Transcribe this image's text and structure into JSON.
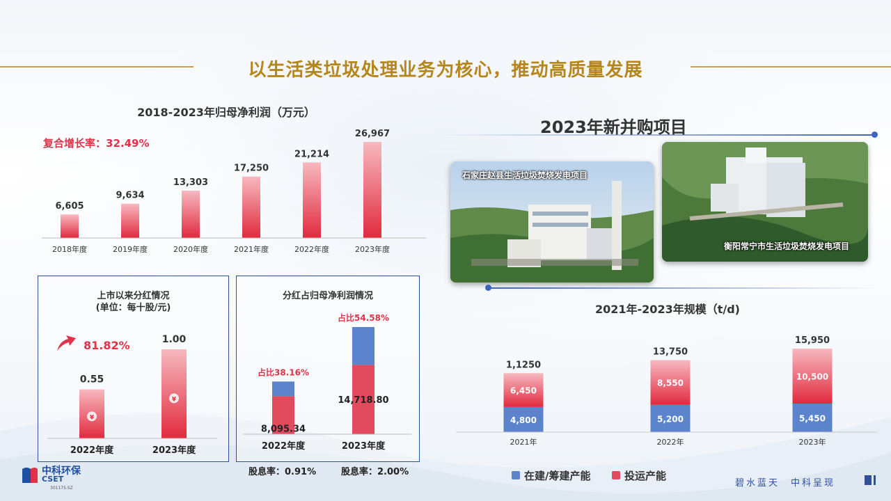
{
  "page": {
    "title": "以生活类垃圾处理业务为核心，推动高质量发展",
    "brand_cn": "中科环保",
    "brand_en": "CSET",
    "stock_code": "301175.SZ",
    "slogan": "碧水蓝天　中科呈现"
  },
  "acquisitions": {
    "title": "2023年新并购项目",
    "project_1": "石家庄赵县生活垃圾焚烧发电项目",
    "project_2": "衡阳常宁市生活垃圾焚烧发电项目"
  },
  "profit_chart": {
    "title": "2018-2023年归母净利润（万元）",
    "cagr_label": "复合增长率：32.49%"
  },
  "dividend_chart": {
    "title_line1": "上市以来分红情况",
    "title_line2": "(单位：每十股/元)",
    "growth": "81.82%"
  },
  "ratio_chart": {
    "title": "分红占归母净利润情况",
    "yield_2022": "股息率：0.91%",
    "yield_2023": "股息率：2.00%"
  },
  "scale_chart": {
    "title": "2021年-2023年规模（t/d)",
    "legend_construction": "在建/筹建产能",
    "legend_operation": "投运产能"
  },
  "colors": {
    "red_top": "#f7b9c0",
    "red_bottom": "#e12a3e",
    "blue": "#5b84cc",
    "pink": "#e24a5e",
    "gold": "#b5861c",
    "navy": "#2f4f9a"
  },
  "chart_data": [
    {
      "type": "bar",
      "title": "2018-2023年归母净利润（万元）",
      "categories": [
        "2018年度",
        "2019年度",
        "2020年度",
        "2021年度",
        "2022年度",
        "2023年度"
      ],
      "values": [
        6605,
        9634,
        13303,
        17250,
        21214,
        26967
      ],
      "labels": [
        "6,605",
        "9,634",
        "13,303",
        "17,250",
        "21,214",
        "26,967"
      ],
      "annotation": "复合增长率：32.49%"
    },
    {
      "type": "bar",
      "title": "上市以来分红情况",
      "subtitle": "(单位：每十股/元)",
      "categories": [
        "2022年度",
        "2023年度"
      ],
      "values": [
        0.55,
        1.0
      ],
      "labels": [
        "0.55",
        "1.00"
      ],
      "annotation": "81.82%"
    },
    {
      "type": "bar",
      "title": "分红占归母净利润情况",
      "categories": [
        "2022年度",
        "2023年度"
      ],
      "series": [
        {
          "values": [
            8095.34,
            14718.8
          ],
          "labels": [
            "8,095.34",
            "14,718.80"
          ],
          "color": "#e24a5e"
        },
        {
          "values": [
            3089.2,
            8034.6
          ],
          "color": "#5b84cc"
        }
      ],
      "share_labels": [
        "占比38.16%",
        "占比54.58%"
      ]
    },
    {
      "type": "bar",
      "title": "2021年-2023年规模（t/d)",
      "categories": [
        "2021年",
        "2022年",
        "2023年"
      ],
      "series": [
        {
          "name": "在建/筹建产能",
          "values": [
            4800,
            5200,
            5450
          ],
          "labels": [
            "4,800",
            "5,200",
            "5,450"
          ],
          "color": "#5b84cc"
        },
        {
          "name": "投运产能",
          "values": [
            6450,
            8550,
            10500
          ],
          "labels": [
            "6,450",
            "8,550",
            "10,500"
          ],
          "color": "#e24a5e"
        }
      ],
      "totals": [
        "1,1250",
        "13,750",
        "15,950"
      ],
      "total_values": [
        11250,
        13750,
        15950
      ]
    }
  ]
}
